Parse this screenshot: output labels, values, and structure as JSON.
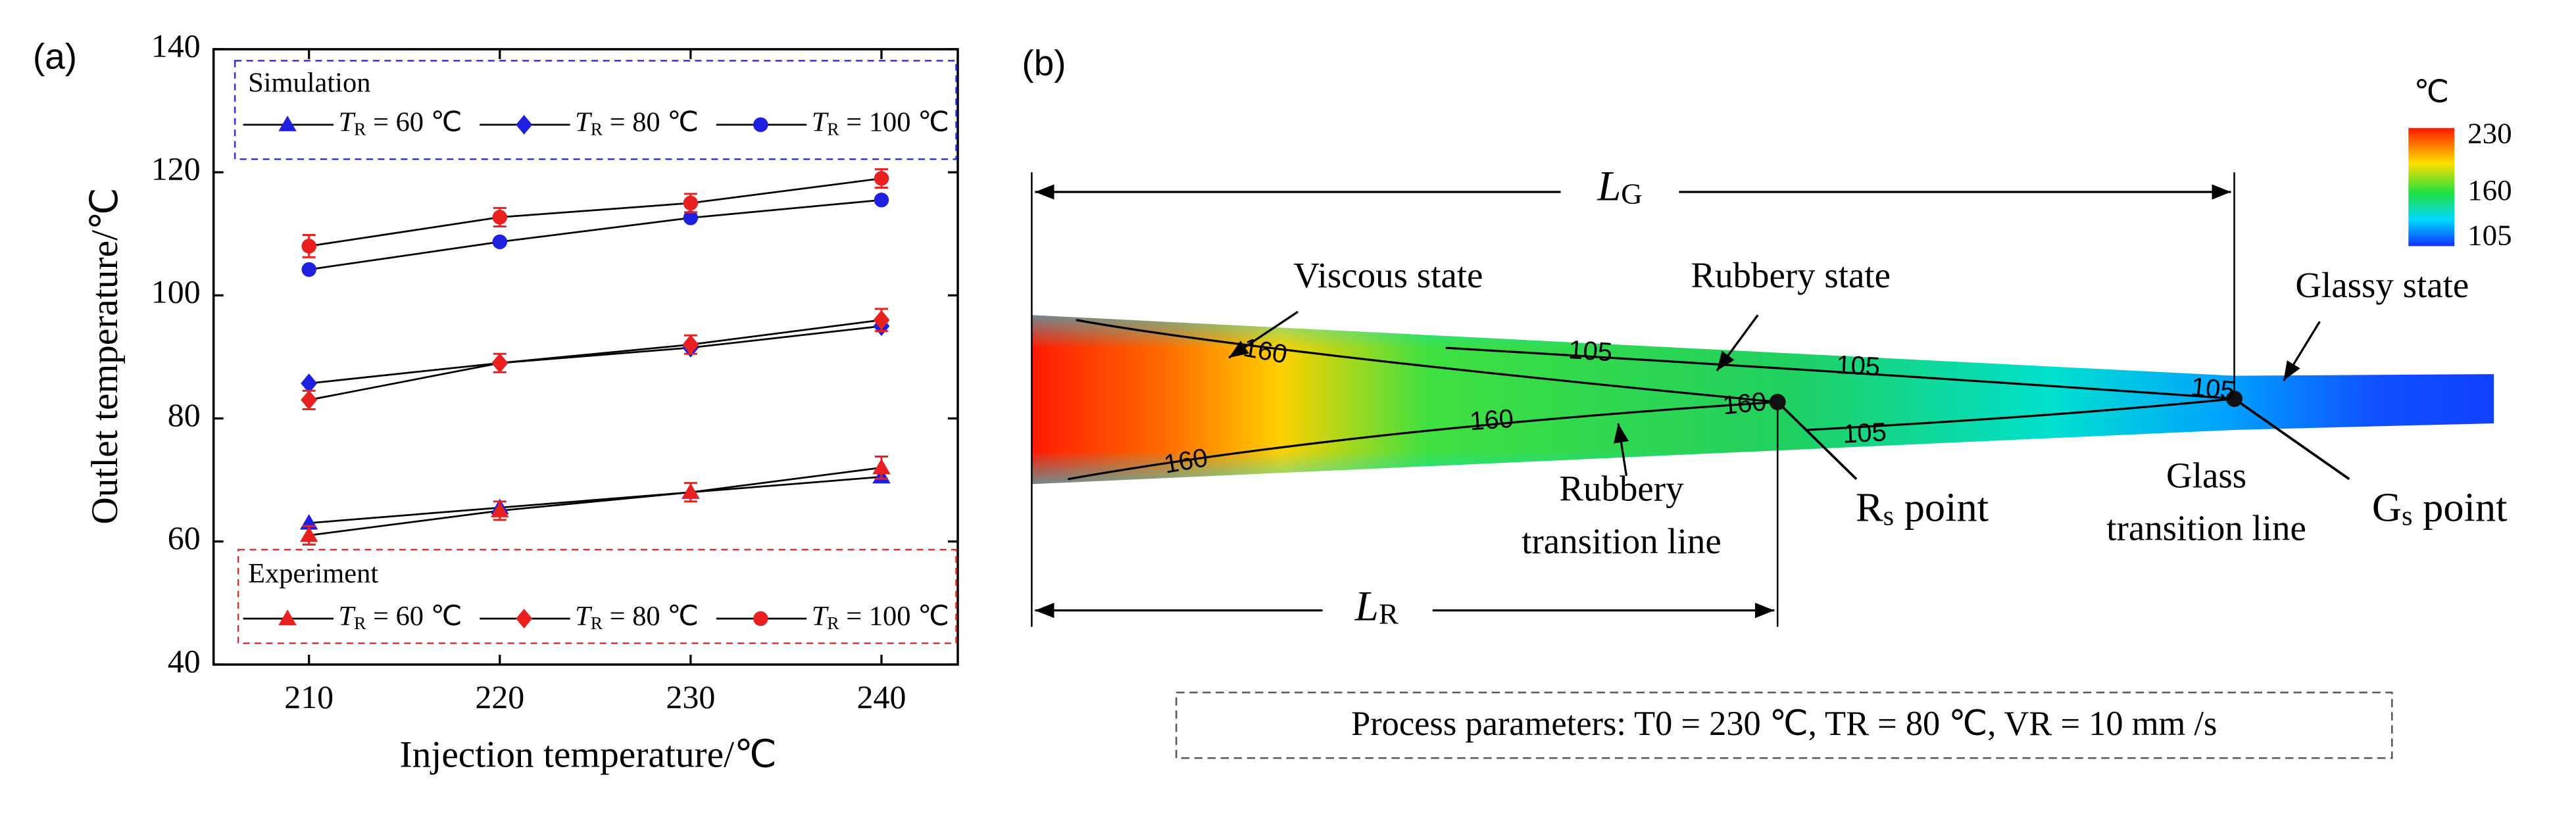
{
  "chart_data": {
    "type": "line",
    "panel_label": "(a)",
    "x_label": "Injection temperature/℃",
    "y_label": "Outlet temperature/℃",
    "x": [
      210,
      220,
      230,
      240
    ],
    "xlim": [
      205,
      244
    ],
    "xticks": [
      210,
      220,
      230,
      240
    ],
    "ylim": [
      40,
      140
    ],
    "yticks": [
      40,
      60,
      80,
      100,
      120,
      140
    ],
    "grid": false,
    "legend_titles": [
      "Simulation",
      "Experiment"
    ],
    "series": [
      {
        "name": "TR = 60 ℃",
        "color": "#1f1fe0",
        "marker": "triangle",
        "values": [
          63,
          65.5,
          68,
          70.5
        ]
      },
      {
        "name": "TR = 80 ℃",
        "color": "#1f1fe0",
        "marker": "diamond",
        "values": [
          85.7,
          89,
          91.5,
          95
        ]
      },
      {
        "name": "TR = 100 ℃",
        "color": "#1f1fe0",
        "marker": "circle",
        "values": [
          104.2,
          108.7,
          112.6,
          115.5
        ]
      },
      {
        "name": "TR = 60 ℃",
        "color": "#e82020",
        "marker": "triangle",
        "values": [
          61,
          65,
          68,
          72
        ],
        "errors": [
          1.5,
          1.5,
          1.5,
          1.8
        ]
      },
      {
        "name": "TR = 80 ℃",
        "color": "#e82020",
        "marker": "diamond",
        "values": [
          83,
          89,
          92,
          96
        ],
        "errors": [
          1.5,
          1.5,
          1.5,
          1.8
        ]
      },
      {
        "name": "TR = 100 ℃",
        "color": "#e82020",
        "marker": "circle",
        "values": [
          108,
          112.7,
          115,
          119
        ],
        "errors": [
          1.8,
          1.5,
          1.5,
          1.5
        ]
      }
    ]
  },
  "diagram": {
    "panel_label": "(b)",
    "colorbar": {
      "unit": "℃",
      "clim": [
        95,
        240
      ],
      "ticks": [
        230,
        160,
        105
      ]
    },
    "length_labels": [
      "LG",
      "LR"
    ],
    "state_labels": [
      "Viscous state",
      "Rubbery state",
      "Glassy state"
    ],
    "transition_labels": [
      [
        "Rubbery",
        "transition line"
      ],
      [
        "Glass",
        "transition line"
      ]
    ],
    "point_labels": [
      "Rs point",
      "Gs point"
    ],
    "contour_labels": [
      "160",
      "160",
      "160",
      "160",
      "105",
      "105",
      "105",
      "105"
    ],
    "process_parameters": "Process parameters: T0 = 230 ℃, TR = 80 ℃, VR = 10 mm /s"
  }
}
